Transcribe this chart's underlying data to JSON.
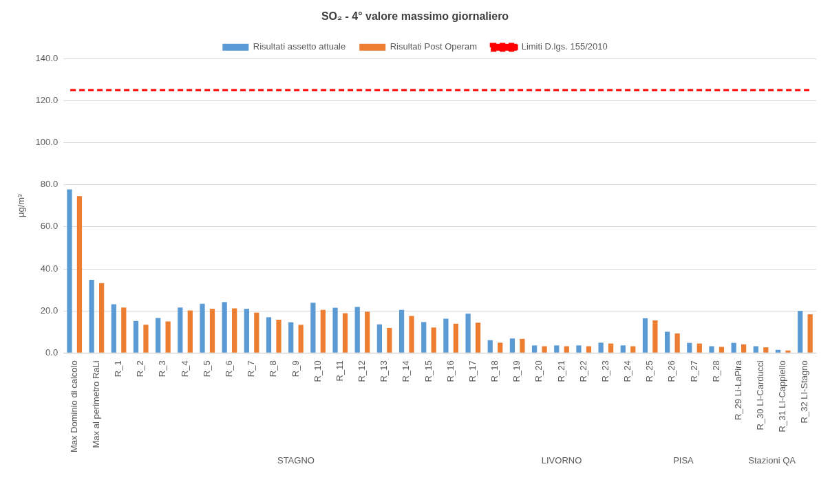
{
  "chart_data": {
    "type": "bar",
    "title": "SO₂ - 4° valore massimo giornaliero",
    "ylabel": "μg/m³",
    "categories": [
      "Max Dominio di calcolo",
      "Max al perimetro RaLi",
      "R_1",
      "R_2",
      "R_3",
      "R_4",
      "R_5",
      "R_6",
      "R_7",
      "R_8",
      "R_9",
      "R_10",
      "R_11",
      "R_12",
      "R_13",
      "R_14",
      "R_15",
      "R_16",
      "R_17",
      "R_18",
      "R_19",
      "R_20",
      "R_21",
      "R_22",
      "R_23",
      "R_24",
      "R_25",
      "R_26",
      "R_27",
      "R_28",
      "R_29 Li-LaPira",
      "R_30 LI-Carducci",
      "R_31 LI-Cappiello",
      "R_32 LI-Stagno"
    ],
    "series": [
      {
        "name": "Risultati assetto attuale",
        "color": "#5b9bd5",
        "values": [
          77.8,
          34.8,
          23.2,
          15.2,
          16.6,
          21.6,
          23.4,
          24.2,
          21.0,
          17.0,
          14.6,
          23.9,
          21.5,
          21.9,
          13.6,
          20.5,
          14.7,
          16.3,
          18.7,
          6.1,
          6.9,
          3.6,
          3.6,
          3.6,
          4.9,
          3.6,
          16.5,
          10.1,
          4.8,
          3.2,
          4.8,
          3.2,
          1.5,
          20.0
        ]
      },
      {
        "name": "Risultati Post Operam",
        "color": "#ed7d31",
        "values": [
          74.6,
          33.2,
          21.6,
          13.4,
          15.0,
          20.2,
          21.0,
          21.2,
          19.2,
          15.8,
          13.4,
          20.5,
          18.9,
          19.6,
          11.9,
          17.6,
          12.1,
          13.9,
          14.4,
          4.9,
          6.7,
          3.2,
          3.2,
          3.2,
          4.5,
          3.2,
          15.5,
          9.3,
          4.5,
          2.9,
          4.1,
          2.7,
          1.2,
          18.4
        ]
      }
    ],
    "ref_lines": [
      {
        "axis": "y",
        "value": 125,
        "label": "Limiti D.lgs. 155/2010",
        "color": "#ff0000",
        "line_style": "dashed"
      }
    ],
    "annotations": [
      "STAGNO",
      "LIVORNO",
      "PISA",
      "Stazioni QA"
    ],
    "ylim": [
      0,
      140
    ],
    "yticks": [
      {
        "value": 0,
        "label": "0.0"
      },
      {
        "value": 20,
        "label": "20.0"
      },
      {
        "value": 40,
        "label": "40.0"
      },
      {
        "value": 60,
        "label": "60.0"
      },
      {
        "value": 80,
        "label": "80.0"
      },
      {
        "value": 100,
        "label": "100.0"
      },
      {
        "value": 120,
        "label": "120.0"
      },
      {
        "value": 140,
        "label": "140.0"
      }
    ],
    "grid": "y",
    "legend": "top"
  }
}
